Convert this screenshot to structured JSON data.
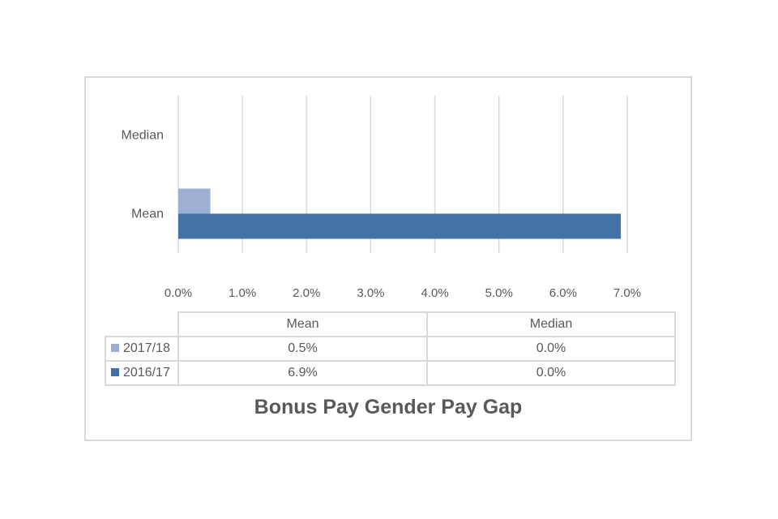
{
  "chart_data": {
    "type": "bar",
    "orientation": "horizontal",
    "title": "Bonus Pay Gender Pay Gap",
    "categories": [
      "Mean",
      "Median"
    ],
    "series": [
      {
        "name": "2017/18",
        "values": [
          0.5,
          0.0
        ],
        "color": "#9db0d4"
      },
      {
        "name": "2016/17",
        "values": [
          6.9,
          0.0
        ],
        "color": "#4472a4"
      }
    ],
    "xlim": [
      0,
      7
    ],
    "x_ticks": [
      "0.0%",
      "1.0%",
      "2.0%",
      "3.0%",
      "4.0%",
      "5.0%",
      "6.0%",
      "7.0%"
    ],
    "grid": true,
    "legend": "data-table",
    "data_table": {
      "columns": [
        "Mean",
        "Median"
      ],
      "rows": [
        {
          "series": "2017/18",
          "cells": [
            "0.5%",
            "0.0%"
          ]
        },
        {
          "series": "2016/17",
          "cells": [
            "6.9%",
            "0.0%"
          ]
        }
      ]
    }
  }
}
